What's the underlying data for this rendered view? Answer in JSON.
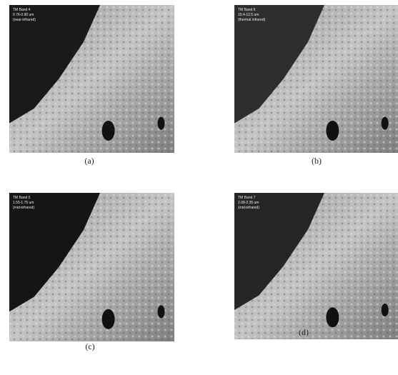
{
  "figure": {
    "panels": [
      {
        "lines": [
          "TM Band 4",
          "0.76-0.90 um",
          "(near-infrared)"
        ],
        "caption": "(a)"
      },
      {
        "lines": [
          "TM Band 6",
          "10.4-12.5 um",
          "(thermal infrared)"
        ],
        "caption": "(b)"
      },
      {
        "lines": [
          "TM Band 5",
          "1.55-1.75 um",
          "(mid-infrared)"
        ],
        "caption": "(c)"
      },
      {
        "lines": [
          "TM Band 7",
          "2.08-2.35 um",
          "(mid-infrared)"
        ],
        "caption": "(d)"
      }
    ]
  }
}
